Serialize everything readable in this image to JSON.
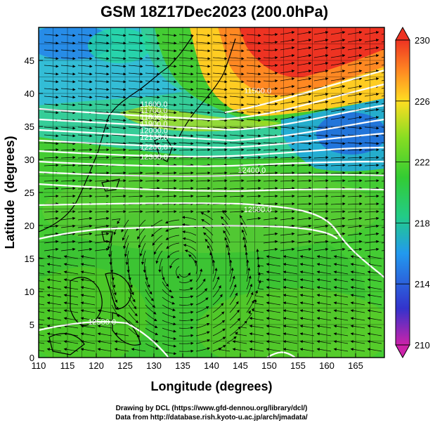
{
  "title": "GSM 18Z17Dec2023 (200.0hPa)",
  "credits": {
    "line1": "Drawing by DCL (https://www.gfd-dennou.org/library/dcl/)",
    "line2": "Data from http://database.rish.kyoto-u.ac.jp/arch/jmadata/"
  },
  "chart_data": {
    "type": "heatmap",
    "xlabel": "Longitude (degrees)",
    "ylabel": "Latitude  (degrees)",
    "xlim": [
      110,
      170
    ],
    "ylim": [
      0,
      50
    ],
    "x_ticks": [
      110,
      115,
      120,
      125,
      130,
      135,
      140,
      145,
      150,
      155,
      160,
      165
    ],
    "y_ticks": [
      0,
      5,
      10,
      15,
      20,
      25,
      30,
      35,
      40,
      45
    ],
    "grid": true,
    "colorbar": {
      "min": 210,
      "max": 230,
      "ticks": [
        210,
        214,
        218,
        222,
        226,
        230
      ],
      "colors": [
        "#cc22aa",
        "#3333cc",
        "#2299ee",
        "#22cc88",
        "#33cc33",
        "#88dd22",
        "#ffdd22",
        "#ff8822",
        "#ee3322"
      ]
    },
    "contour_labels": [
      {
        "text": "11500.0",
        "lon": 148,
        "lat": 40
      },
      {
        "text": "11600.0",
        "lon": 130,
        "lat": 38
      },
      {
        "text": "11700.0",
        "lon": 130,
        "lat": 37
      },
      {
        "text": "11800.0",
        "lon": 130,
        "lat": 36
      },
      {
        "text": "11900.0",
        "lon": 130,
        "lat": 35
      },
      {
        "text": "12000.0",
        "lon": 130,
        "lat": 34
      },
      {
        "text": "12100.0",
        "lon": 130,
        "lat": 33
      },
      {
        "text": "12200.0",
        "lon": 130,
        "lat": 31.5
      },
      {
        "text": "12300.0",
        "lon": 130,
        "lat": 30
      },
      {
        "text": "12400.0",
        "lon": 147,
        "lat": 28
      },
      {
        "text": "12500.0",
        "lon": 148,
        "lat": 22
      },
      {
        "text": "12500.0",
        "lon": 121,
        "lat": 5
      }
    ]
  }
}
